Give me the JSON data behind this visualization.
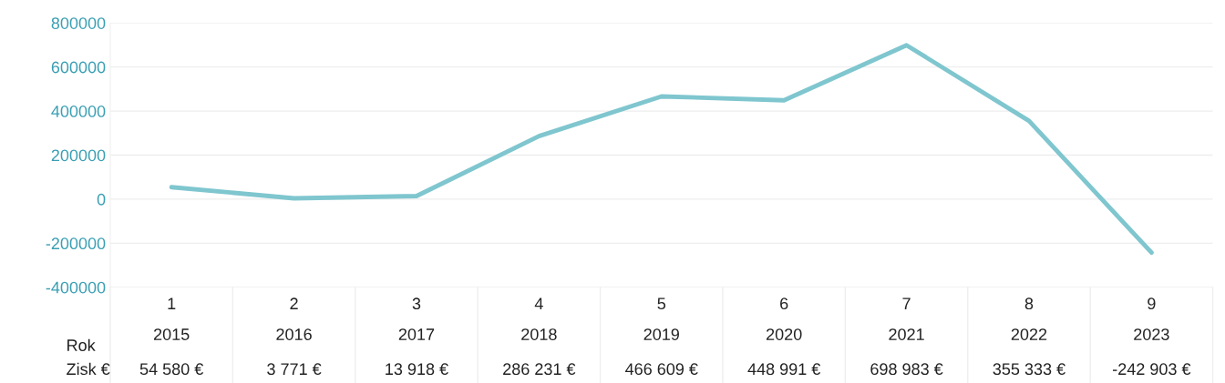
{
  "chart_data": {
    "type": "line",
    "categories": [
      "1\n2015",
      "2\n2016",
      "3\n2017",
      "4\n2018",
      "5\n2019",
      "6\n2020",
      "7\n2021",
      "8\n2022",
      "9\n2023"
    ],
    "series": [
      {
        "color": "#7fc6cf",
        "values": [
          54580,
          3771,
          13918,
          286231,
          466609,
          448991,
          698983,
          355333,
          -242903
        ],
        "value_labels": [
          "54 580 €",
          "3 771 €",
          "13 918 €",
          "286 231 €",
          "466 609 €",
          "448 991 €",
          "698 983 €",
          "355 333 €",
          "-242 903 €"
        ]
      }
    ],
    "ylim": [
      -400000,
      800000
    ],
    "yticks": [
      -400000,
      -200000,
      0,
      200000,
      400000,
      600000,
      800000
    ],
    "grid": "y",
    "marker": "none",
    "line_style": "solid",
    "annotations": [
      "Rok",
      "Zisk €"
    ]
  }
}
